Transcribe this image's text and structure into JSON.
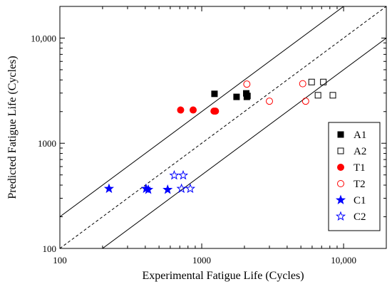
{
  "chart_data": {
    "type": "scatter",
    "xlabel": "Experimental Fatigue Life (Cycles)",
    "ylabel": "Predicted Fatigue Life (Cycles)",
    "x_scale": "log",
    "y_scale": "log",
    "xlim": [
      100,
      20000
    ],
    "ylim": [
      100,
      20000
    ],
    "x_ticks": [
      {
        "value": 100,
        "label": "100"
      },
      {
        "value": 1000,
        "label": "1000"
      },
      {
        "value": 10000,
        "label": "10,000"
      }
    ],
    "y_ticks": [
      {
        "value": 100,
        "label": "100"
      },
      {
        "value": 1000,
        "label": "1000"
      },
      {
        "value": 10000,
        "label": "10,000"
      }
    ],
    "reference_lines": [
      {
        "style": "dashed",
        "factor": 1
      },
      {
        "style": "solid",
        "factor": 2
      },
      {
        "style": "solid",
        "factor": 0.5
      }
    ],
    "legend_position": "bottom-right",
    "grid": false,
    "series": [
      {
        "name": "A1",
        "marker": "square",
        "filled": true,
        "color": "#000000",
        "points": [
          [
            1230,
            2950
          ],
          [
            1760,
            2760
          ],
          [
            2060,
            2980
          ],
          [
            2080,
            2760
          ],
          [
            2100,
            2820
          ]
        ]
      },
      {
        "name": "A2",
        "marker": "square",
        "filled": false,
        "color": "#000000",
        "points": [
          [
            5950,
            3820
          ],
          [
            7200,
            3820
          ],
          [
            6600,
            2860
          ],
          [
            8400,
            2860
          ]
        ]
      },
      {
        "name": "T1",
        "marker": "circle",
        "filled": true,
        "color": "#ff0000",
        "points": [
          [
            710,
            2070
          ],
          [
            870,
            2070
          ],
          [
            1220,
            2020
          ],
          [
            1250,
            2020
          ]
        ]
      },
      {
        "name": "T2",
        "marker": "circle",
        "filled": false,
        "color": "#ff0000",
        "points": [
          [
            2080,
            3650
          ],
          [
            5150,
            3680
          ],
          [
            3000,
            2510
          ],
          [
            5400,
            2510
          ]
        ]
      },
      {
        "name": "C1",
        "marker": "star",
        "filled": true,
        "color": "#0000ff",
        "points": [
          [
            222,
            370
          ],
          [
            405,
            370
          ],
          [
            420,
            362
          ],
          [
            575,
            362
          ]
        ]
      },
      {
        "name": "C2",
        "marker": "star",
        "filled": false,
        "color": "#0000ff",
        "points": [
          [
            640,
            495
          ],
          [
            740,
            495
          ],
          [
            720,
            370
          ],
          [
            830,
            370
          ]
        ]
      }
    ]
  }
}
